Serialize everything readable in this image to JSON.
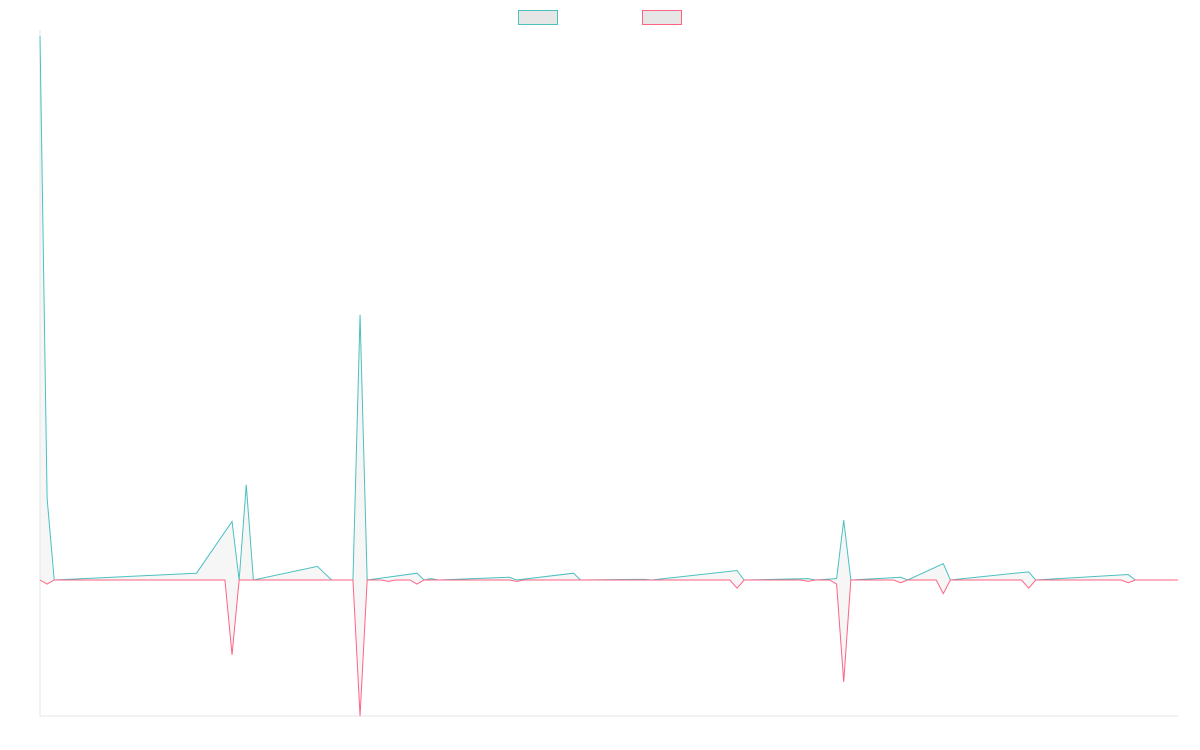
{
  "chart_data": {
    "type": "line",
    "title": "",
    "xlabel": "",
    "ylabel": "",
    "grid": false,
    "legend_position": "top-center",
    "x_count": 160,
    "ylim": [
      -10000,
      40000
    ],
    "series": [
      {
        "color": "#4bc0c0",
        "fill": "#e6e6e6",
        "points": [
          [
            0,
            40000
          ],
          [
            1,
            6000
          ],
          [
            2,
            0
          ],
          [
            22,
            500
          ],
          [
            27,
            4300
          ],
          [
            28,
            0
          ],
          [
            29,
            7000
          ],
          [
            30,
            0
          ],
          [
            39,
            1000
          ],
          [
            40,
            500
          ],
          [
            41,
            0
          ],
          [
            44,
            0
          ],
          [
            45,
            19500
          ],
          [
            46,
            0
          ],
          [
            53,
            500
          ],
          [
            54,
            0
          ],
          [
            55,
            100
          ],
          [
            56,
            0
          ],
          [
            66,
            200
          ],
          [
            67,
            0
          ],
          [
            75,
            500
          ],
          [
            76,
            0
          ],
          [
            85,
            50
          ],
          [
            86,
            0
          ],
          [
            98,
            700
          ],
          [
            99,
            0
          ],
          [
            108,
            100
          ],
          [
            109,
            0
          ],
          [
            112,
            100
          ],
          [
            113,
            4400
          ],
          [
            114,
            0
          ],
          [
            121,
            200
          ],
          [
            122,
            0
          ],
          [
            127,
            1200
          ],
          [
            128,
            0
          ],
          [
            139,
            600
          ],
          [
            140,
            0
          ],
          [
            153,
            400
          ],
          [
            154,
            0
          ],
          [
            160,
            0
          ]
        ]
      },
      {
        "color": "#ff6384",
        "fill": "#e6e6e6",
        "points": [
          [
            0,
            0
          ],
          [
            1,
            -300
          ],
          [
            2,
            0
          ],
          [
            26,
            0
          ],
          [
            27,
            -5500
          ],
          [
            28,
            0
          ],
          [
            44,
            0
          ],
          [
            45,
            -10000
          ],
          [
            46,
            0
          ],
          [
            48,
            0
          ],
          [
            49,
            -100
          ],
          [
            50,
            0
          ],
          [
            52,
            0
          ],
          [
            53,
            -300
          ],
          [
            54,
            0
          ],
          [
            66,
            0
          ],
          [
            67,
            -100
          ],
          [
            68,
            0
          ],
          [
            97,
            0
          ],
          [
            98,
            -600
          ],
          [
            99,
            0
          ],
          [
            107,
            0
          ],
          [
            108,
            -100
          ],
          [
            109,
            0
          ],
          [
            111,
            0
          ],
          [
            112,
            -300
          ],
          [
            113,
            -7500
          ],
          [
            114,
            0
          ],
          [
            120,
            0
          ],
          [
            121,
            -200
          ],
          [
            122,
            0
          ],
          [
            126,
            0
          ],
          [
            127,
            -1000
          ],
          [
            128,
            0
          ],
          [
            138,
            0
          ],
          [
            139,
            -600
          ],
          [
            140,
            0
          ],
          [
            152,
            0
          ],
          [
            153,
            -200
          ],
          [
            154,
            0
          ],
          [
            160,
            0
          ]
        ]
      }
    ]
  }
}
